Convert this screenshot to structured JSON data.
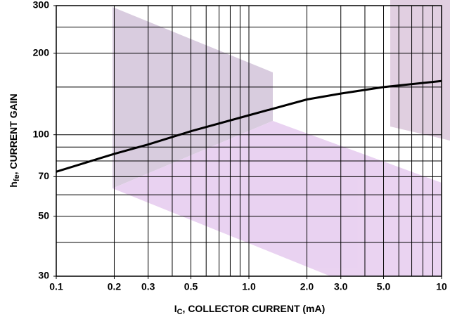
{
  "chart_data": {
    "type": "line",
    "x_label": {
      "main": "I",
      "sub": "C",
      "rest": ", COLLECTOR CURRENT (mA)"
    },
    "y_label": {
      "main": "h",
      "sub": "fe",
      "rest": ", CURRENT GAIN"
    },
    "x_scale": "log",
    "y_scale": "log",
    "xlim": [
      0.1,
      10
    ],
    "ylim": [
      30,
      300
    ],
    "xticks": [
      0.1,
      0.2,
      0.3,
      0.5,
      {
        "value": 1,
        "label": "1.0"
      },
      {
        "value": 2,
        "label": "2.0"
      },
      {
        "value": 3,
        "label": "3.0"
      },
      {
        "value": 5,
        "label": "5.0"
      },
      10
    ],
    "yticks": [
      30,
      50,
      70,
      100,
      200,
      300
    ],
    "xgrid": [
      0.1,
      0.2,
      0.3,
      0.4,
      0.5,
      0.6,
      0.7,
      0.8,
      0.9,
      1,
      2,
      3,
      4,
      5,
      6,
      7,
      8,
      9,
      10
    ],
    "ygrid": [
      30,
      40,
      50,
      60,
      70,
      80,
      90,
      100,
      150,
      200,
      250,
      300
    ],
    "x": [
      0.1,
      0.2,
      0.3,
      0.5,
      1,
      2,
      3,
      5,
      10
    ],
    "series": [
      {
        "color": "#000000",
        "values": [
          73,
          85,
          92,
          103,
          118,
          135,
          142,
          150,
          158
        ]
      }
    ]
  }
}
